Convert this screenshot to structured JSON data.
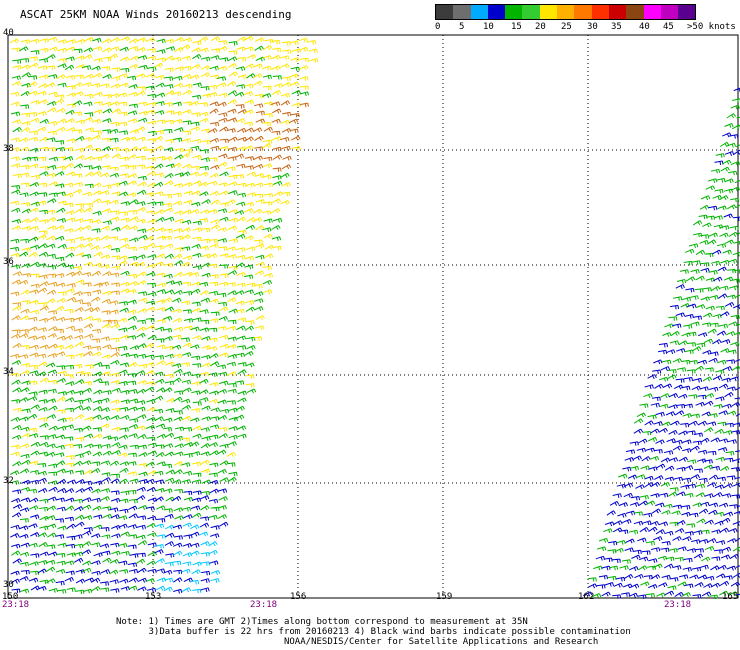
{
  "title": "ASCAT 25KM NOAA Winds 20160213 descending",
  "legend": {
    "colors": [
      "#3c3c3c",
      "#6e6e6e",
      "#00aaff",
      "#0000cc",
      "#00b400",
      "#33cc33",
      "#ffe600",
      "#ffb000",
      "#ff7800",
      "#ff3000",
      "#cc0000",
      "#8b4513",
      "#ff00ff",
      "#c000c0",
      "#5a0090"
    ],
    "ticks": [
      "0",
      "5",
      "10",
      "15",
      "20",
      "25",
      "30",
      "35",
      "40",
      "45",
      ">50 knots"
    ]
  },
  "latitude_labels": [
    "40",
    "38",
    "36",
    "34",
    "32",
    "30"
  ],
  "longitude_labels": [
    "150",
    "153",
    "156",
    "159",
    "162",
    "165"
  ],
  "pass_times": [
    "23:18",
    "23:18",
    "23:18"
  ],
  "notes": [
    "Note: 1) Times are GMT 2)Times along bottom correspond to measurement at 35N",
    "      3)Data buffer is 22 hrs from 20160213 4) Black wind barbs indicate possible contamination",
    "                               NOAA/NESDIS/Center for Satellite Applications and Research"
  ],
  "wind_colors": {
    "calm": "#00c8ff",
    "light": "#0000cc",
    "moderate": "#00b400",
    "fresh": "#ffe600",
    "strong": "#e8a020",
    "gale": "#c86414"
  }
}
